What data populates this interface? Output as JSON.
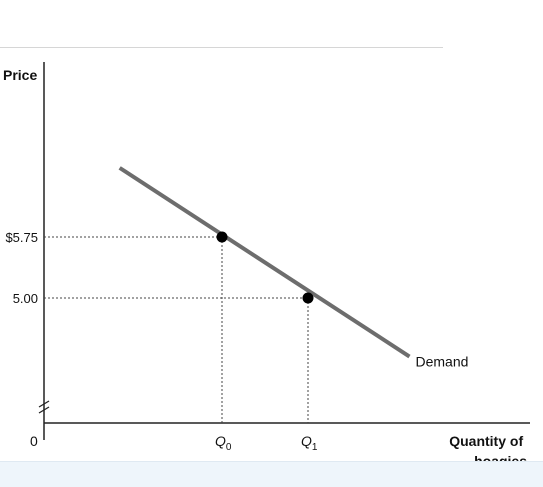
{
  "chart_data": {
    "type": "line",
    "ylabel": "Price",
    "xlabel_lines": [
      "Quantity of",
      "hoagies"
    ],
    "origin_label": "0",
    "y_ticks": [
      {
        "value": 5.75,
        "label": "$5.75"
      },
      {
        "value": 5.0,
        "label": "5.00"
      }
    ],
    "x_ticks": [
      {
        "value": 0,
        "label_main": "Q",
        "label_sub": "0"
      },
      {
        "value": 1,
        "label_main": "Q",
        "label_sub": "1"
      }
    ],
    "series": [
      {
        "name": "Demand",
        "line_x": [
          -1.19,
          2.18
        ],
        "line_y": [
          6.6,
          4.28
        ],
        "points": [
          {
            "x": 0,
            "y": 5.75
          },
          {
            "x": 1,
            "y": 5.0
          }
        ]
      }
    ],
    "axis_break_y": true,
    "grid": false
  },
  "colors": {
    "demand_line": "#6d6d6d",
    "axis": "#222222",
    "guide": "#444444",
    "point": "#000000"
  }
}
